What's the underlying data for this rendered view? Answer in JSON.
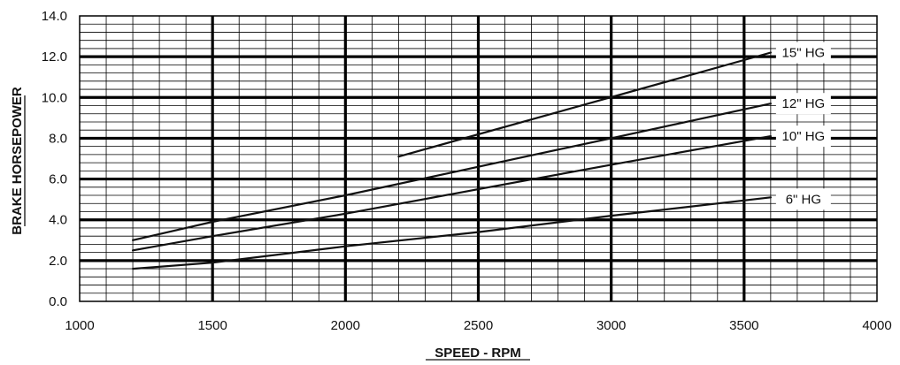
{
  "chart_data": {
    "type": "line",
    "title": "",
    "xlabel": "SPEED - RPM",
    "ylabel": "BRAKE HORSEPOWER",
    "xlim": [
      1000,
      4000
    ],
    "ylim": [
      0,
      14
    ],
    "grid": true,
    "x_major_ticks": [
      1000,
      1500,
      2000,
      2500,
      3000,
      3500,
      4000
    ],
    "x_tick_labels": [
      "1000",
      "1500",
      "2000",
      "2500",
      "3000",
      "3500",
      "4000"
    ],
    "y_major_ticks": [
      0,
      2,
      4,
      6,
      8,
      10,
      12,
      14
    ],
    "y_tick_labels": [
      "0.0",
      "2.0",
      "4.0",
      "6.0",
      "8.0",
      "10.0",
      "12.0",
      "14.0"
    ],
    "x_minor_step": 100,
    "y_minor_step": 0.4,
    "series": [
      {
        "name": "15\" HG",
        "x": [
          2200,
          3600
        ],
        "y": [
          7.1,
          12.2
        ]
      },
      {
        "name": "12\" HG",
        "x": [
          1200,
          1500,
          2000,
          2500,
          3000,
          3600
        ],
        "y": [
          3.0,
          3.9,
          5.2,
          6.6,
          8.0,
          9.7
        ]
      },
      {
        "name": "10\" HG",
        "x": [
          1200,
          1500,
          2000,
          2500,
          3000,
          3600
        ],
        "y": [
          2.5,
          3.2,
          4.3,
          5.5,
          6.7,
          8.1
        ]
      },
      {
        "name": "6\" HG",
        "x": [
          1200,
          1500,
          2000,
          2500,
          3000,
          3600
        ],
        "y": [
          1.6,
          1.9,
          2.7,
          3.4,
          4.2,
          5.1
        ]
      }
    ]
  }
}
